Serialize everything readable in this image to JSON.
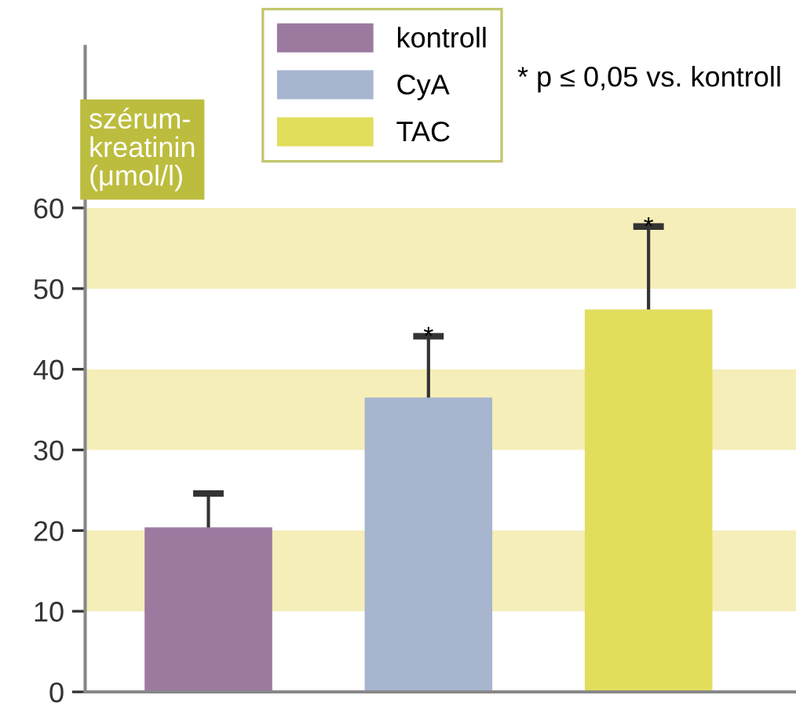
{
  "chart_data": {
    "type": "bar",
    "ylabel": "szérum-\nkreatinin\n(μmol/l)",
    "categories": [
      null,
      null,
      null
    ],
    "series": [
      {
        "name": "kontroll",
        "color": "#9c7aa0",
        "values": [
          20.4,
          null,
          null
        ],
        "errors": [
          4.2,
          null,
          null
        ]
      },
      {
        "name": "CyA",
        "color": "#a8b5cf",
        "values": [
          null,
          36.5,
          null
        ],
        "errors": [
          null,
          7.6,
          null
        ],
        "value_labels": [
          null,
          "*",
          null
        ]
      },
      {
        "name": "TAC",
        "color": "#e2de5c",
        "values": [
          null,
          null,
          47.4
        ],
        "errors": [
          null,
          null,
          10.3
        ],
        "value_labels": [
          null,
          null,
          "*"
        ]
      }
    ],
    "ylim": [
      0,
      80
    ],
    "yticks": [
      0,
      10,
      20,
      30,
      40,
      50,
      60
    ],
    "bands": [
      {
        "axis": "y",
        "from": 10,
        "to": 20,
        "color": "#f5eeb9"
      },
      {
        "axis": "y",
        "from": 30,
        "to": 40,
        "color": "#f5eeb9"
      },
      {
        "axis": "y",
        "from": 50,
        "to": 60,
        "color": "#f5eeb9"
      }
    ],
    "annotations": [
      "* p ≤ 0,05 vs. kontroll"
    ],
    "legend": "top left",
    "grid": false
  }
}
